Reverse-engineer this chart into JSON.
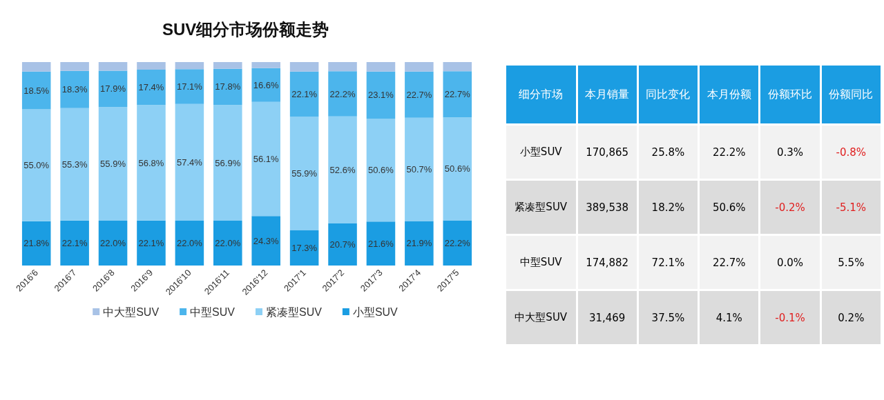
{
  "chart_data": [
    {
      "type": "bar",
      "title": "SUV细分市场份额走势",
      "stacked": true,
      "legend": "bottom",
      "categories": [
        "2016'6",
        "2016'7",
        "2016'8",
        "2016'9",
        "2016'10",
        "2016'11",
        "2016'12",
        "2017'1",
        "2017'2",
        "2017'3",
        "2017'4",
        "2017'5"
      ],
      "series": [
        {
          "name": "小型SUV",
          "color": "#1b9de2",
          "values": [
            21.8,
            22.1,
            22.0,
            22.1,
            22.0,
            22.0,
            24.3,
            17.3,
            20.7,
            21.6,
            21.9,
            22.2
          ],
          "value_labels": [
            "21.8%",
            "22.1%",
            "22.0%",
            "22.1%",
            "22.0%",
            "22.0%",
            "24.3%",
            "17.3%",
            "20.7%",
            "21.6%",
            "21.9%",
            "22.2%"
          ]
        },
        {
          "name": "紧凑型SUV",
          "color": "#8dd0f5",
          "values": [
            55.0,
            55.3,
            55.9,
            56.8,
            57.4,
            56.9,
            56.1,
            55.9,
            52.6,
            50.6,
            50.7,
            50.6
          ],
          "value_labels": [
            "55.0%",
            "55.3%",
            "55.9%",
            "56.8%",
            "57.4%",
            "56.9%",
            "56.1%",
            "55.9%",
            "52.6%",
            "50.6%",
            "50.7%",
            "50.6%"
          ]
        },
        {
          "name": "中型SUV",
          "color": "#4cb5ec",
          "values": [
            18.5,
            18.3,
            17.9,
            17.4,
            17.1,
            17.8,
            16.6,
            22.1,
            22.2,
            23.1,
            22.7,
            22.7
          ],
          "value_labels": [
            "18.5%",
            "18.3%",
            "17.9%",
            "17.4%",
            "17.1%",
            "17.8%",
            "16.6%",
            "22.1%",
            "22.2%",
            "23.1%",
            "22.7%",
            "22.7%"
          ]
        },
        {
          "name": "中大型SUV",
          "color": "#a8c2e6",
          "values": [
            4.7,
            4.3,
            4.2,
            3.7,
            3.5,
            3.3,
            3.0,
            4.7,
            4.5,
            4.7,
            4.7,
            4.5
          ]
        }
      ]
    },
    {
      "type": "other",
      "ylabel": "细分市场",
      "categories": [
        "小型SUV",
        "紧凑型SUV",
        "中型SUV",
        "中大型SUV"
      ],
      "series": [
        {
          "name": "本月销量",
          "colors": [
            "#f2f2f2",
            "#dcdcdc",
            "#f2f2f2",
            "#dcdcdc"
          ],
          "values": [
            170865,
            389538,
            174882,
            31469
          ],
          "value_labels": [
            "170,865",
            "389,538",
            "174,882",
            "31,469"
          ]
        },
        {
          "name": "同比变化",
          "colors": [
            "#f2f2f2",
            "#dcdcdc",
            "#f2f2f2",
            "#dcdcdc"
          ],
          "values": [
            25.8,
            18.2,
            72.1,
            37.5
          ],
          "value_labels": [
            "25.8%",
            "18.2%",
            "72.1%",
            "37.5%"
          ]
        },
        {
          "name": "本月份额",
          "colors": [
            "#f2f2f2",
            "#dcdcdc",
            "#f2f2f2",
            "#dcdcdc"
          ],
          "values": [
            22.2,
            50.6,
            22.7,
            4.1
          ],
          "value_labels": [
            "22.2%",
            "50.6%",
            "22.7%",
            "4.1%"
          ]
        },
        {
          "name": "份额环比",
          "colors": [
            "#f2f2f2",
            "#dcdcdc",
            "#f2f2f2",
            "#dcdcdc"
          ],
          "values": [
            0.3,
            -0.2,
            0.0,
            -0.1
          ],
          "value_labels": [
            "0.3%",
            "-0.2%",
            "0.0%",
            "-0.1%"
          ]
        },
        {
          "name": "份额同比",
          "colors": [
            "#f2f2f2",
            "#dcdcdc",
            "#f2f2f2",
            "#dcdcdc"
          ],
          "values": [
            -0.8,
            -5.1,
            5.5,
            0.2
          ],
          "value_labels": [
            "-0.8%",
            "-5.1%",
            "5.5%",
            "0.2%"
          ]
        }
      ]
    }
  ]
}
